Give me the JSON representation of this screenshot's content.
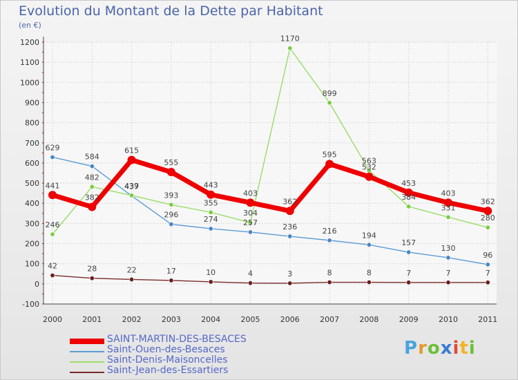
{
  "title": "Evolution du Montant de la Dette par Habitant",
  "subtitle": "(en €)",
  "brand": {
    "letters": [
      "P",
      "r",
      "o",
      "x",
      "i",
      "t",
      "i"
    ],
    "colors": [
      "#4aa3df",
      "#e89a2c",
      "#6cbf3a",
      "#3a7bd5",
      "#e04b3a",
      "#f0b429",
      "#6cbf3a"
    ]
  },
  "chart_data": {
    "type": "line",
    "title": "Evolution du Montant de la Dette par Habitant",
    "ylabel": "(en €)",
    "xlabel": "",
    "x": [
      "2000",
      "2001",
      "2002",
      "2003",
      "2004",
      "2005",
      "2006",
      "2007",
      "2008",
      "2009",
      "2010",
      "2011"
    ],
    "ylim": [
      -100,
      1200
    ],
    "yticks": [
      "-100",
      "0",
      "100",
      "200",
      "300",
      "400",
      "500",
      "600",
      "700",
      "800",
      "900",
      "1000",
      "1100",
      "1200"
    ],
    "grid": true,
    "legend": "bottom-left",
    "series": [
      {
        "name": "SAINT-MARTIN-DES-BESACES",
        "color": "#ee0000",
        "point_color": "#ee0000",
        "weight": "heavy",
        "values": [
          441,
          382,
          615,
          555,
          443,
          403,
          362,
          595,
          532,
          453,
          403,
          362
        ]
      },
      {
        "name": "Saint-Ouen-des-Besaces",
        "color": "#5b9bd5",
        "point_color": "#4a86c5",
        "weight": "thin",
        "values": [
          629,
          584,
          437,
          296,
          274,
          257,
          236,
          216,
          194,
          157,
          130,
          96
        ]
      },
      {
        "name": "Saint-Denis-Maisoncelles",
        "color": "#99dd66",
        "point_color": "#7acc44",
        "weight": "thin",
        "values": [
          246,
          482,
          439,
          393,
          355,
          304,
          1170,
          899,
          563,
          384,
          331,
          280
        ]
      },
      {
        "name": "Saint-Jean-des-Essartiers",
        "color": "#7a2a2a",
        "point_color": "#6a1f1f",
        "weight": "thin",
        "values": [
          42,
          28,
          22,
          17,
          10,
          4,
          3,
          8,
          8,
          7,
          7,
          7
        ]
      }
    ]
  }
}
